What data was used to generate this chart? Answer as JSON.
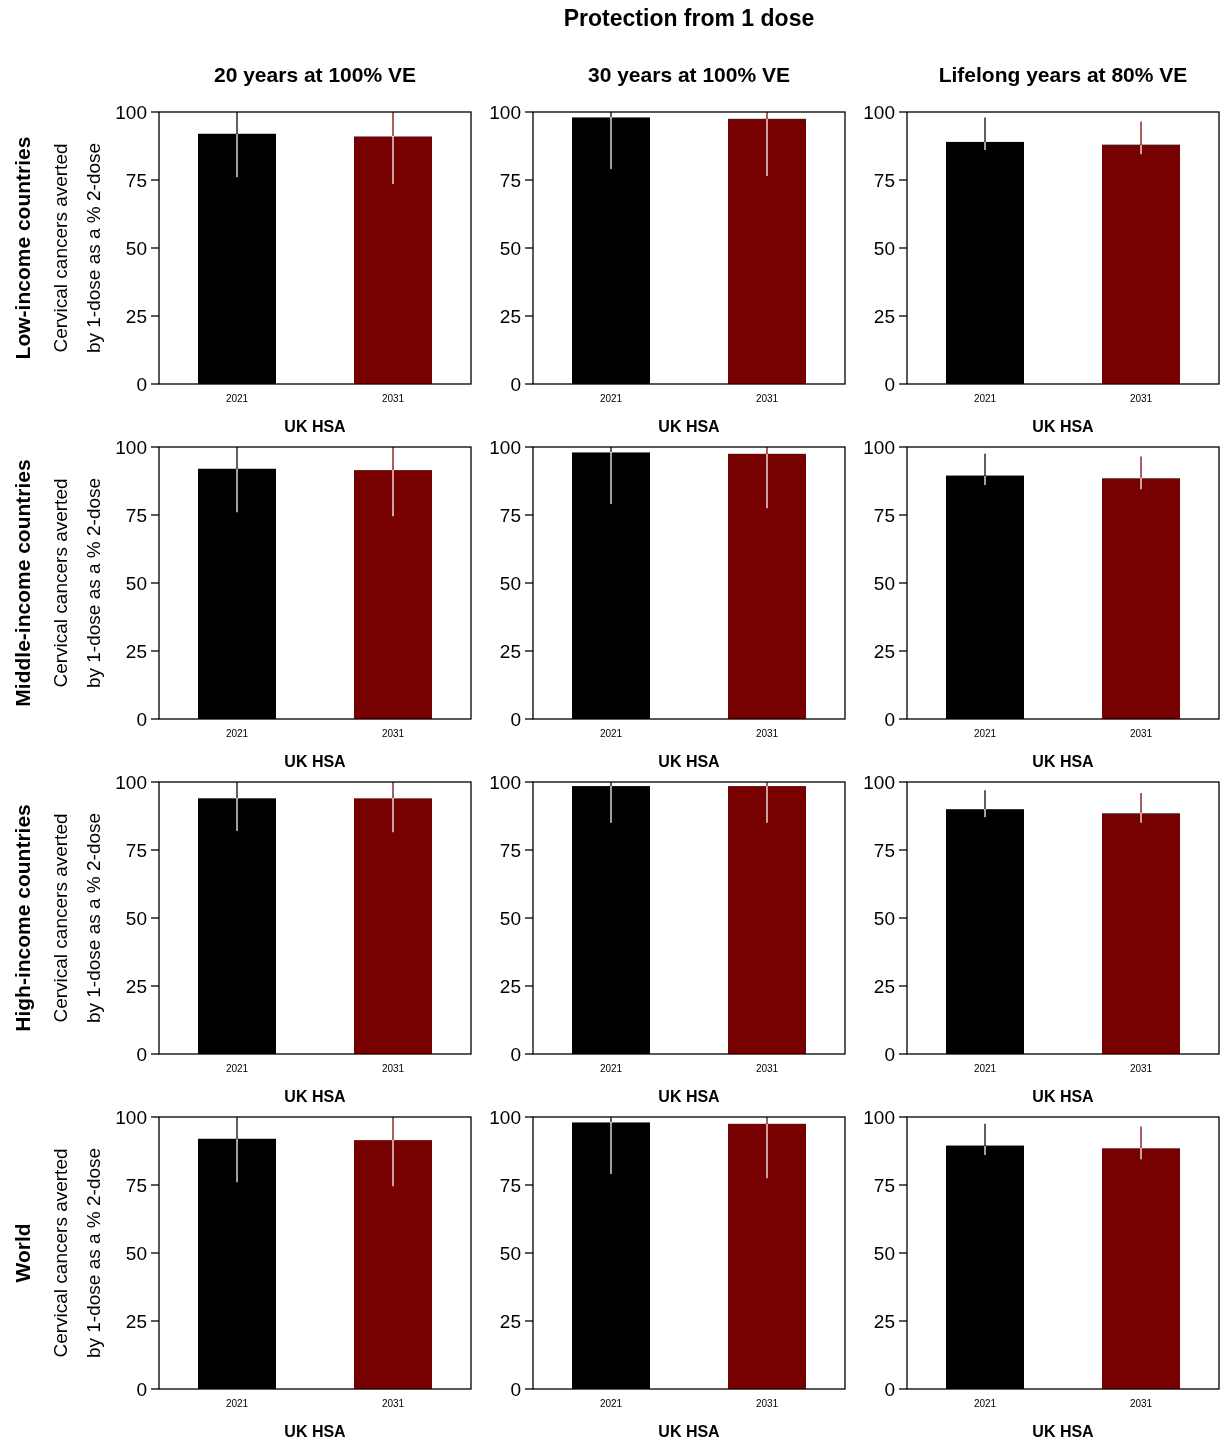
{
  "chart_data": [
    {
      "type": "bar",
      "title": "20 years at 100% VE",
      "ylabel": "Cervical cancers averted\nby 1-dose as a % 2-dose",
      "xlabel": "UK HSA",
      "annotations": [
        "Low-income countries",
        "Protection from 1 dose"
      ],
      "categories": [
        "2021",
        "2031"
      ],
      "values": [
        92,
        91
      ],
      "colors": [
        "#000000",
        "#770000"
      ],
      "errors": [
        [
          76,
          100
        ],
        [
          73.5,
          100
        ]
      ],
      "ylim": [
        0,
        100
      ],
      "yticks": [
        0,
        25,
        50,
        75,
        100
      ],
      "grid": false
    },
    {
      "type": "bar",
      "title": "30 years at 100% VE",
      "xlabel": "UK HSA",
      "categories": [
        "2021",
        "2031"
      ],
      "values": [
        98,
        97.5
      ],
      "colors": [
        "#000000",
        "#770000"
      ],
      "errors": [
        [
          79,
          100
        ],
        [
          76.5,
          100
        ]
      ],
      "ylim": [
        0,
        100
      ],
      "yticks": [
        0,
        25,
        50,
        75,
        100
      ],
      "grid": false
    },
    {
      "type": "bar",
      "title": "Lifelong years at 80% VE",
      "xlabel": "UK HSA",
      "categories": [
        "2021",
        "2031"
      ],
      "values": [
        89,
        88
      ],
      "colors": [
        "#000000",
        "#770000"
      ],
      "errors": [
        [
          86,
          98
        ],
        [
          84.5,
          96.5
        ]
      ],
      "ylim": [
        0,
        100
      ],
      "yticks": [
        0,
        25,
        50,
        75,
        100
      ],
      "grid": false
    },
    {
      "type": "bar",
      "ylabel": "Cervical cancers averted\nby 1-dose as a % 2-dose",
      "xlabel": "UK HSA",
      "annotations": [
        "Middle-income countries"
      ],
      "categories": [
        "2021",
        "2031"
      ],
      "values": [
        92,
        91.5
      ],
      "colors": [
        "#000000",
        "#770000"
      ],
      "errors": [
        [
          76,
          100
        ],
        [
          74.5,
          100
        ]
      ],
      "ylim": [
        0,
        100
      ],
      "yticks": [
        0,
        25,
        50,
        75,
        100
      ],
      "grid": false
    },
    {
      "type": "bar",
      "xlabel": "UK HSA",
      "categories": [
        "2021",
        "2031"
      ],
      "values": [
        98,
        97.5
      ],
      "colors": [
        "#000000",
        "#770000"
      ],
      "errors": [
        [
          79,
          100
        ],
        [
          77.5,
          100
        ]
      ],
      "ylim": [
        0,
        100
      ],
      "yticks": [
        0,
        25,
        50,
        75,
        100
      ],
      "grid": false
    },
    {
      "type": "bar",
      "xlabel": "UK HSA",
      "categories": [
        "2021",
        "2031"
      ],
      "values": [
        89.5,
        88.5
      ],
      "colors": [
        "#000000",
        "#770000"
      ],
      "errors": [
        [
          86,
          97.5
        ],
        [
          84.5,
          96.5
        ]
      ],
      "ylim": [
        0,
        100
      ],
      "yticks": [
        0,
        25,
        50,
        75,
        100
      ],
      "grid": false
    },
    {
      "type": "bar",
      "ylabel": "Cervical cancers averted\nby 1-dose as a % 2-dose",
      "xlabel": "UK HSA",
      "annotations": [
        "High-income countries"
      ],
      "categories": [
        "2021",
        "2031"
      ],
      "values": [
        94,
        94
      ],
      "colors": [
        "#000000",
        "#770000"
      ],
      "errors": [
        [
          82,
          100
        ],
        [
          81.5,
          100
        ]
      ],
      "ylim": [
        0,
        100
      ],
      "yticks": [
        0,
        25,
        50,
        75,
        100
      ],
      "grid": false
    },
    {
      "type": "bar",
      "xlabel": "UK HSA",
      "categories": [
        "2021",
        "2031"
      ],
      "values": [
        98.5,
        98.5
      ],
      "colors": [
        "#000000",
        "#770000"
      ],
      "errors": [
        [
          85,
          100
        ],
        [
          85,
          100
        ]
      ],
      "ylim": [
        0,
        100
      ],
      "yticks": [
        0,
        25,
        50,
        75,
        100
      ],
      "grid": false
    },
    {
      "type": "bar",
      "xlabel": "UK HSA",
      "categories": [
        "2021",
        "2031"
      ],
      "values": [
        90,
        88.5
      ],
      "colors": [
        "#000000",
        "#770000"
      ],
      "errors": [
        [
          87,
          97
        ],
        [
          85,
          96
        ]
      ],
      "ylim": [
        0,
        100
      ],
      "yticks": [
        0,
        25,
        50,
        75,
        100
      ],
      "grid": false
    },
    {
      "type": "bar",
      "ylabel": "Cervical cancers averted\nby 1-dose as a % 2-dose",
      "xlabel": "UK HSA",
      "annotations": [
        "World"
      ],
      "categories": [
        "2021",
        "2031"
      ],
      "values": [
        92,
        91.5
      ],
      "colors": [
        "#000000",
        "#770000"
      ],
      "errors": [
        [
          76,
          100
        ],
        [
          74.5,
          100
        ]
      ],
      "ylim": [
        0,
        100
      ],
      "yticks": [
        0,
        25,
        50,
        75,
        100
      ],
      "grid": false
    },
    {
      "type": "bar",
      "xlabel": "UK HSA",
      "categories": [
        "2021",
        "2031"
      ],
      "values": [
        98,
        97.5
      ],
      "colors": [
        "#000000",
        "#770000"
      ],
      "errors": [
        [
          79,
          100
        ],
        [
          77.5,
          100
        ]
      ],
      "ylim": [
        0,
        100
      ],
      "yticks": [
        0,
        25,
        50,
        75,
        100
      ],
      "grid": false
    },
    {
      "type": "bar",
      "xlabel": "UK HSA",
      "categories": [
        "2021",
        "2031"
      ],
      "values": [
        89.5,
        88.5
      ],
      "colors": [
        "#000000",
        "#770000"
      ],
      "errors": [
        [
          86,
          97.5
        ],
        [
          84.5,
          96.5
        ]
      ],
      "ylim": [
        0,
        100
      ],
      "yticks": [
        0,
        25,
        50,
        75,
        100
      ],
      "grid": false
    }
  ]
}
